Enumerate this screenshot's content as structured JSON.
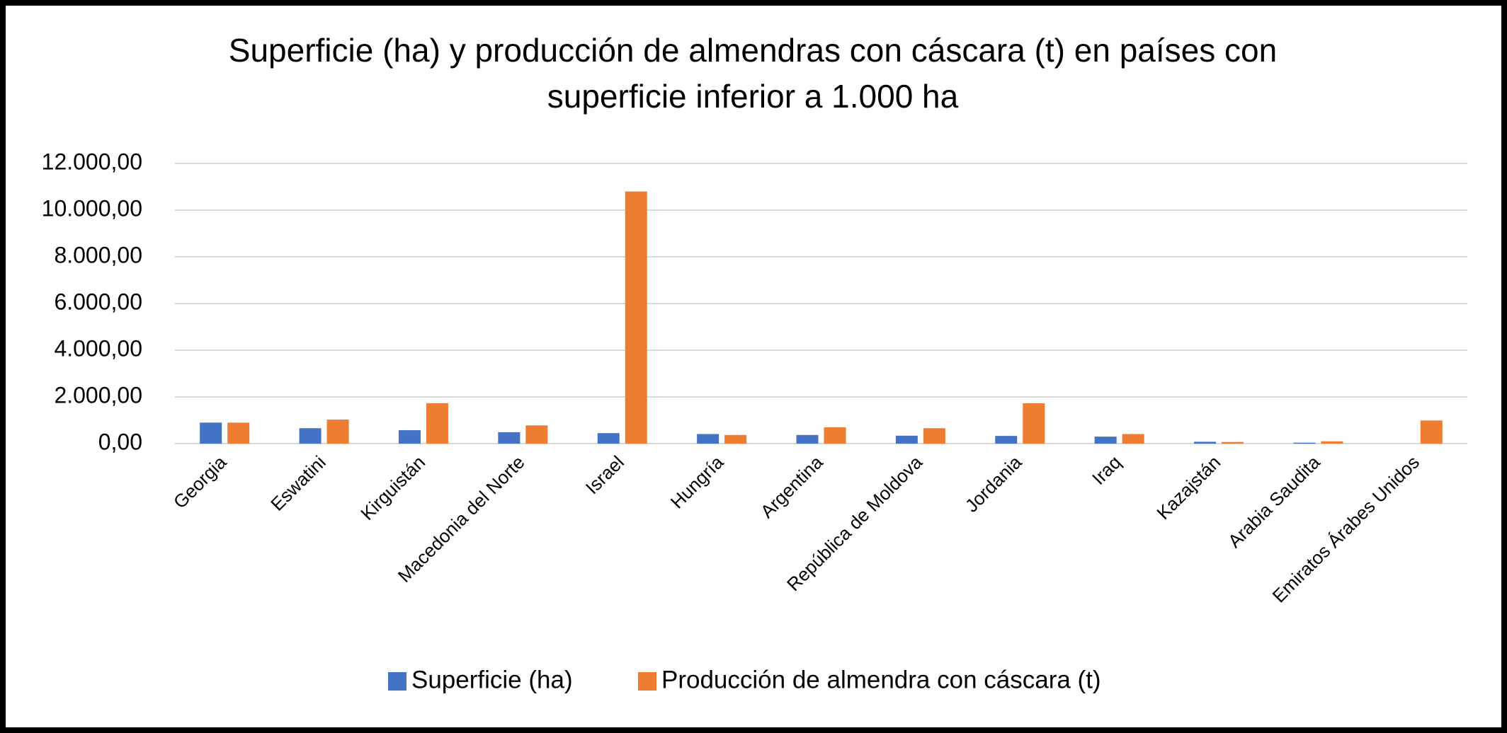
{
  "chart_data": {
    "type": "bar",
    "title": [
      "Superficie (ha) y producción de almendras con cáscara (t) en países con",
      "superficie inferior a 1.000 ha"
    ],
    "categories": [
      "Georgia",
      "Eswatini",
      "Kirguistán",
      "Macedonia del Norte",
      "Israel",
      "Hungría",
      "Argentina",
      "República de Moldova",
      "Jordania",
      "Iraq",
      "Kazajstán",
      "Arabia Saudita",
      "Emiratos Árabes Unidos"
    ],
    "series": [
      {
        "name": "Superficie (ha)",
        "color": "#4472c4",
        "values": [
          900,
          660,
          575,
          490,
          450,
          410,
          370,
          340,
          330,
          300,
          80,
          40,
          0
        ]
      },
      {
        "name": "Producción de almendra con cáscara (t)",
        "color": "#ed7d31",
        "values": [
          900,
          1030,
          1730,
          780,
          10800,
          370,
          700,
          660,
          1730,
          410,
          70,
          100,
          990
        ]
      }
    ],
    "ylim": [
      0,
      12000
    ],
    "yticks": [
      {
        "value": 0,
        "label": "0,00"
      },
      {
        "value": 2000,
        "label": "2.000,00"
      },
      {
        "value": 4000,
        "label": "4.000,00"
      },
      {
        "value": 6000,
        "label": "6.000,00"
      },
      {
        "value": 8000,
        "label": "8.000,00"
      },
      {
        "value": 10000,
        "label": "10.000,00"
      },
      {
        "value": 12000,
        "label": "12.000,00"
      }
    ],
    "grid": true,
    "legend": "bottom"
  }
}
